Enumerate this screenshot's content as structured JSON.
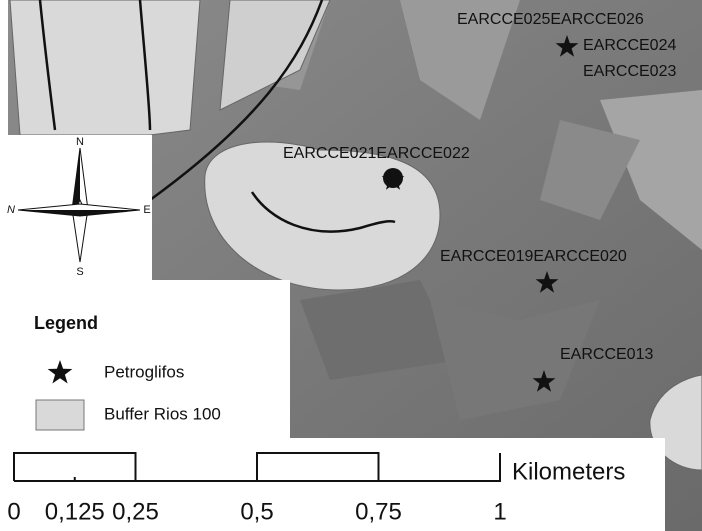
{
  "compass": {
    "north": "N",
    "south": "S",
    "east": "E",
    "west": "N"
  },
  "sites": [
    {
      "labels": [
        "EARCCE025EARCCE026",
        "EARCCE024",
        "EARCCE023"
      ]
    },
    {
      "labels": [
        "EARCCE021EARCCE022"
      ]
    },
    {
      "labels": [
        "EARCCE019EARCCE020"
      ]
    },
    {
      "labels": [
        "EARCCE013"
      ]
    }
  ],
  "legend": {
    "title": "Legend",
    "items": [
      {
        "label": "Petroglifos"
      },
      {
        "label": "Buffer Rios 100"
      }
    ]
  },
  "scale_bar": {
    "unit": "Kilometers",
    "ticks": [
      0,
      {
        "value": 0.125,
        "label": "0,125"
      },
      {
        "value": 0.25,
        "label": "0,25"
      },
      {
        "value": 0.5,
        "label": "0,5"
      },
      {
        "value": 0.75,
        "label": "0,75"
      },
      1
    ]
  }
}
